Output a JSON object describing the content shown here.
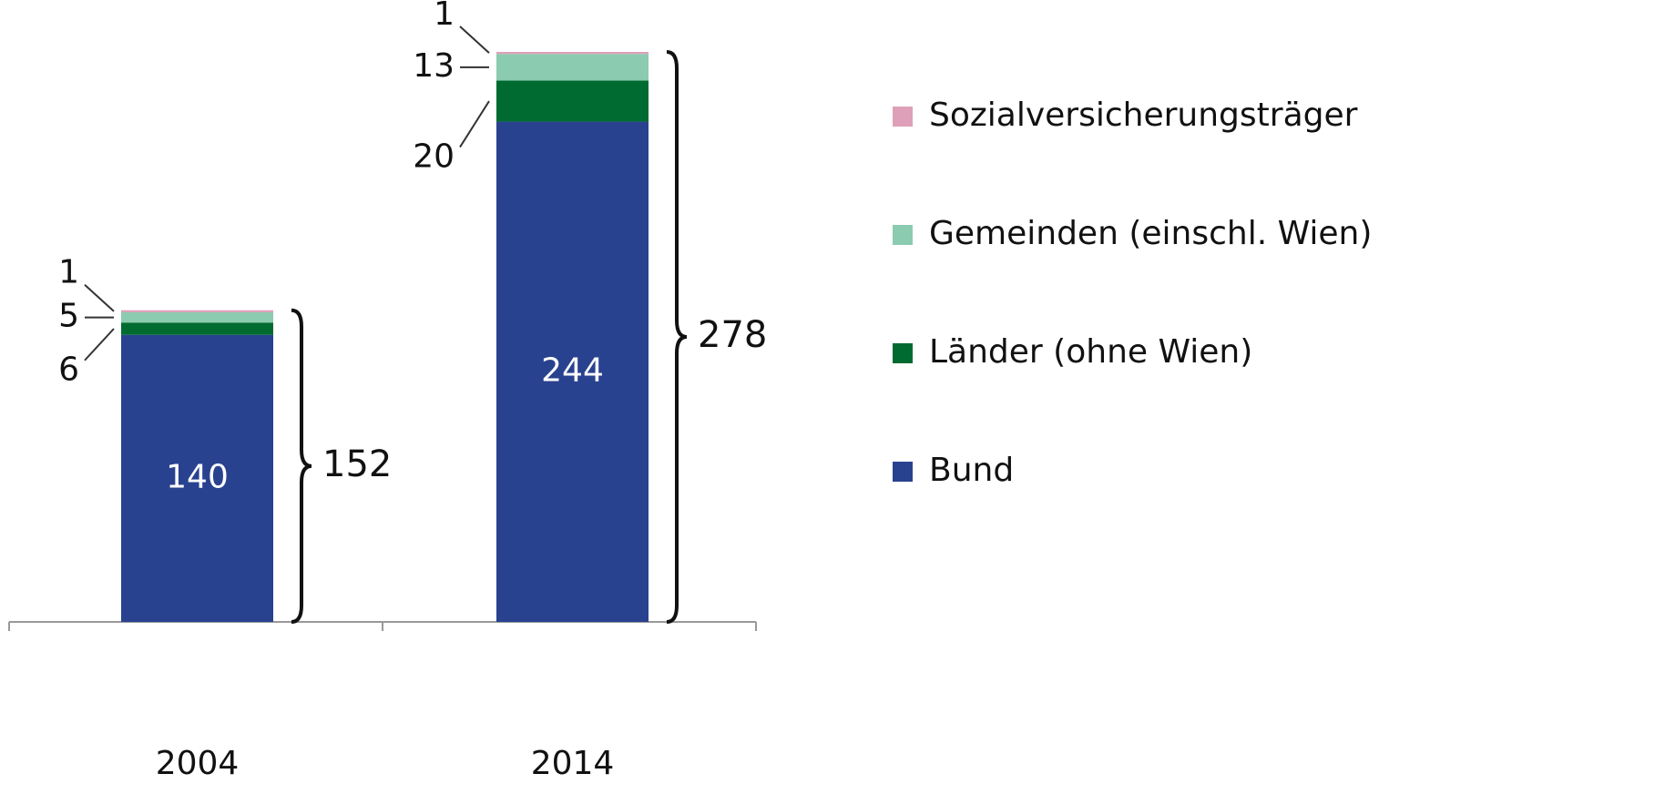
{
  "chart_data": {
    "type": "stacked_bar",
    "categories": [
      "2004",
      "2014"
    ],
    "series": [
      {
        "name": "Bund",
        "color": "#29428f",
        "values": [
          140,
          244
        ]
      },
      {
        "name": "Länder (ohne Wien)",
        "color": "#006b30",
        "values": [
          6,
          20
        ]
      },
      {
        "name": "Gemeinden (einschl. Wien)",
        "color": "#8bcbb0",
        "values": [
          5,
          13
        ]
      },
      {
        "name": "Sozialversicherungsträger",
        "color": "#dea0b8",
        "values": [
          1,
          1
        ]
      }
    ],
    "totals": [
      152,
      278
    ]
  }
}
